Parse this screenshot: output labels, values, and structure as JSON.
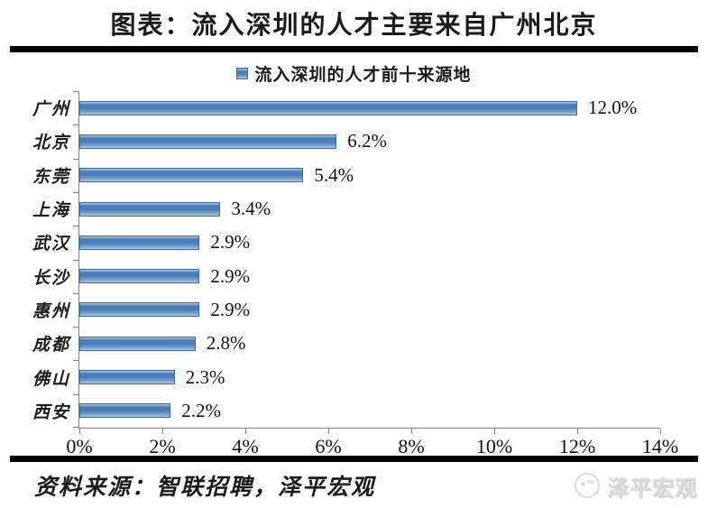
{
  "title": "图表：流入深圳的人才主要来自广州北京",
  "legend": {
    "label": "流入深圳的人才前十来源地"
  },
  "source_note": "资料来源：智联招聘，泽平宏观",
  "watermark": {
    "text": "泽平宏观",
    "icon": "zeping-logo-icon"
  },
  "colors": {
    "bar_fill_dark": "#4a7cb5",
    "bar_fill_light": "#a9c6e2",
    "bar_border": "#39699f",
    "axis": "#7f7f7f",
    "rule": "#000000",
    "watermark": "#d9d9d9"
  },
  "chart_data": {
    "type": "bar",
    "orientation": "horizontal",
    "title": "流入深圳的人才前十来源地",
    "legend_position": "top",
    "categories": [
      "广州",
      "北京",
      "东莞",
      "上海",
      "武汉",
      "长沙",
      "惠州",
      "成都",
      "佛山",
      "西安"
    ],
    "values": [
      12.0,
      6.2,
      5.4,
      3.4,
      2.9,
      2.9,
      2.9,
      2.8,
      2.3,
      2.2
    ],
    "data_labels": [
      "12.0%",
      "6.2%",
      "5.4%",
      "3.4%",
      "2.9%",
      "2.9%",
      "2.9%",
      "2.8%",
      "2.3%",
      "2.2%"
    ],
    "x_ticks": [
      "0%",
      "2%",
      "4%",
      "6%",
      "8%",
      "10%",
      "12%",
      "14%"
    ],
    "x_tick_values": [
      0,
      2,
      4,
      6,
      8,
      10,
      12,
      14
    ],
    "xlim": [
      0,
      14
    ],
    "xlabel": "",
    "ylabel": "",
    "grid": false
  }
}
